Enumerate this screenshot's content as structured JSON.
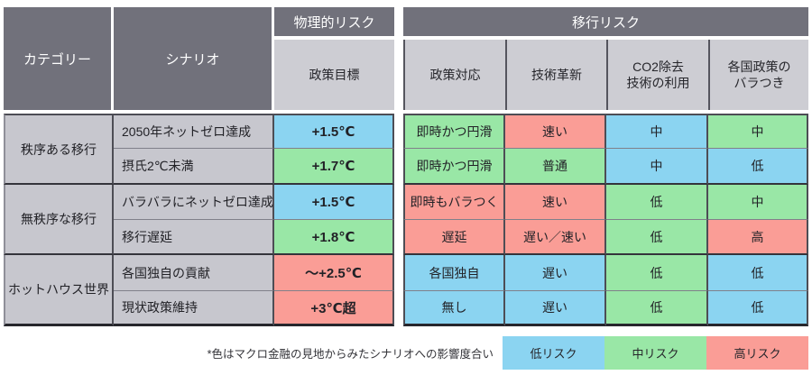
{
  "table": {
    "header": {
      "category": "カテゴリー",
      "scenario": "シナリオ",
      "physical_risk": "物理的リスク",
      "transition_risk": "移行リスク",
      "policy_target": "政策目標",
      "policy_response": "政策対応",
      "tech_innovation": "技術革新",
      "co2_removal": "CO2除去\n技術の利用",
      "policy_variation": "各国政策の\nバラつき"
    },
    "groups": [
      {
        "category": "秩序ある移行",
        "rows": [
          {
            "scenario": "2050年ネットゼロ達成",
            "cells": [
              {
                "text": "+1.5℃",
                "risk": "low",
                "color": "#8bd4f1"
              },
              {
                "text": "即時かつ円滑",
                "risk": "mid",
                "color": "#99e7a6"
              },
              {
                "text": "速い",
                "risk": "high",
                "color": "#fa9d96"
              },
              {
                "text": "中",
                "risk": "low",
                "color": "#8bd4f1"
              },
              {
                "text": "中",
                "risk": "mid",
                "color": "#99e7a6"
              }
            ]
          },
          {
            "scenario": "摂氏2℃未満",
            "cells": [
              {
                "text": "+1.7℃",
                "risk": "mid",
                "color": "#99e7a6"
              },
              {
                "text": "即時かつ円滑",
                "risk": "mid",
                "color": "#99e7a6"
              },
              {
                "text": "普通",
                "risk": "mid",
                "color": "#99e7a6"
              },
              {
                "text": "中",
                "risk": "low",
                "color": "#8bd4f1"
              },
              {
                "text": "低",
                "risk": "low",
                "color": "#8bd4f1"
              }
            ]
          }
        ]
      },
      {
        "category": "無秩序な移行",
        "rows": [
          {
            "scenario": "バラバラにネットゼロ達成",
            "cells": [
              {
                "text": "+1.5℃",
                "risk": "low",
                "color": "#8bd4f1"
              },
              {
                "text": "即時もバラつく",
                "risk": "high",
                "color": "#fa9d96"
              },
              {
                "text": "速い",
                "risk": "high",
                "color": "#fa9d96"
              },
              {
                "text": "低",
                "risk": "mid",
                "color": "#99e7a6"
              },
              {
                "text": "中",
                "risk": "mid",
                "color": "#99e7a6"
              }
            ]
          },
          {
            "scenario": "移行遅延",
            "cells": [
              {
                "text": "+1.8℃",
                "risk": "mid",
                "color": "#99e7a6"
              },
              {
                "text": "遅延",
                "risk": "high",
                "color": "#fa9d96"
              },
              {
                "text": "遅い／速い",
                "risk": "high",
                "color": "#fa9d96"
              },
              {
                "text": "低",
                "risk": "mid",
                "color": "#99e7a6"
              },
              {
                "text": "高",
                "risk": "high",
                "color": "#fa9d96"
              }
            ]
          }
        ]
      },
      {
        "category": "ホットハウス世界",
        "rows": [
          {
            "scenario": "各国独自の貢献",
            "cells": [
              {
                "text": "〜+2.5℃",
                "risk": "high",
                "color": "#fa9d96"
              },
              {
                "text": "各国独自",
                "risk": "low",
                "color": "#8bd4f1"
              },
              {
                "text": "遅い",
                "risk": "low",
                "color": "#8bd4f1"
              },
              {
                "text": "低",
                "risk": "mid",
                "color": "#99e7a6"
              },
              {
                "text": "低",
                "risk": "low",
                "color": "#8bd4f1"
              }
            ]
          },
          {
            "scenario": "現状政策維持",
            "cells": [
              {
                "text": "+3℃超",
                "risk": "high",
                "color": "#fa9d96"
              },
              {
                "text": "無し",
                "risk": "low",
                "color": "#8bd4f1"
              },
              {
                "text": "遅い",
                "risk": "low",
                "color": "#8bd4f1"
              },
              {
                "text": "低",
                "risk": "mid",
                "color": "#99e7a6"
              },
              {
                "text": "低",
                "risk": "low",
                "color": "#8bd4f1"
              }
            ]
          }
        ]
      }
    ]
  },
  "footer": {
    "note": "*色はマクロ金融の見地からみたシナリオへの影響度合い",
    "legend": [
      {
        "label": "低リスク",
        "color": "#8bd4f1"
      },
      {
        "label": "中リスク",
        "color": "#99e7a6"
      },
      {
        "label": "高リスク",
        "color": "#fa9d96"
      }
    ]
  },
  "colors": {
    "low_risk": "#8bd4f1",
    "mid_risk": "#99e7a6",
    "high_risk": "#fa9d96",
    "header_dark": "#71717b",
    "header_light": "#cdcdd3",
    "body_gray": "#c7c7ce"
  },
  "chart_data": {
    "type": "table",
    "columns": [
      "カテゴリー",
      "シナリオ",
      "政策目標",
      "政策対応",
      "技術革新",
      "CO2除去技術の利用",
      "各国政策のバラつき"
    ],
    "column_groups": [
      {
        "label": "物理的リスク",
        "columns": [
          "政策目標"
        ]
      },
      {
        "label": "移行リスク",
        "columns": [
          "政策対応",
          "技術革新",
          "CO2除去技術の利用",
          "各国政策のバラつき"
        ]
      }
    ],
    "rows": [
      [
        "秩序ある移行",
        "2050年ネットゼロ達成",
        "+1.5℃",
        "即時かつ円滑",
        "速い",
        "中",
        "中"
      ],
      [
        "秩序ある移行",
        "摂氏2℃未満",
        "+1.7℃",
        "即時かつ円滑",
        "普通",
        "中",
        "低"
      ],
      [
        "無秩序な移行",
        "バラバラにネットゼロ達成",
        "+1.5℃",
        "即時もバラつく",
        "速い",
        "低",
        "中"
      ],
      [
        "無秩序な移行",
        "移行遅延",
        "+1.8℃",
        "遅延",
        "遅い／速い",
        "低",
        "高"
      ],
      [
        "ホットハウス世界",
        "各国独自の貢献",
        "〜+2.5℃",
        "各国独自",
        "遅い",
        "低",
        "低"
      ],
      [
        "ホットハウス世界",
        "現状政策維持",
        "+3℃超",
        "無し",
        "遅い",
        "低",
        "低"
      ]
    ],
    "cell_risk_levels": [
      [
        "low",
        "mid",
        "high",
        "low",
        "mid"
      ],
      [
        "mid",
        "mid",
        "mid",
        "low",
        "low"
      ],
      [
        "low",
        "high",
        "high",
        "mid",
        "mid"
      ],
      [
        "mid",
        "high",
        "high",
        "mid",
        "high"
      ],
      [
        "high",
        "low",
        "low",
        "mid",
        "low"
      ],
      [
        "high",
        "low",
        "low",
        "mid",
        "low"
      ]
    ],
    "legend": [
      {
        "label": "低リスク",
        "color": "#8bd4f1"
      },
      {
        "label": "中リスク",
        "color": "#99e7a6"
      },
      {
        "label": "高リスク",
        "color": "#fa9d96"
      }
    ],
    "note": "*色はマクロ金融の見地からみたシナリオへの影響度合い"
  }
}
